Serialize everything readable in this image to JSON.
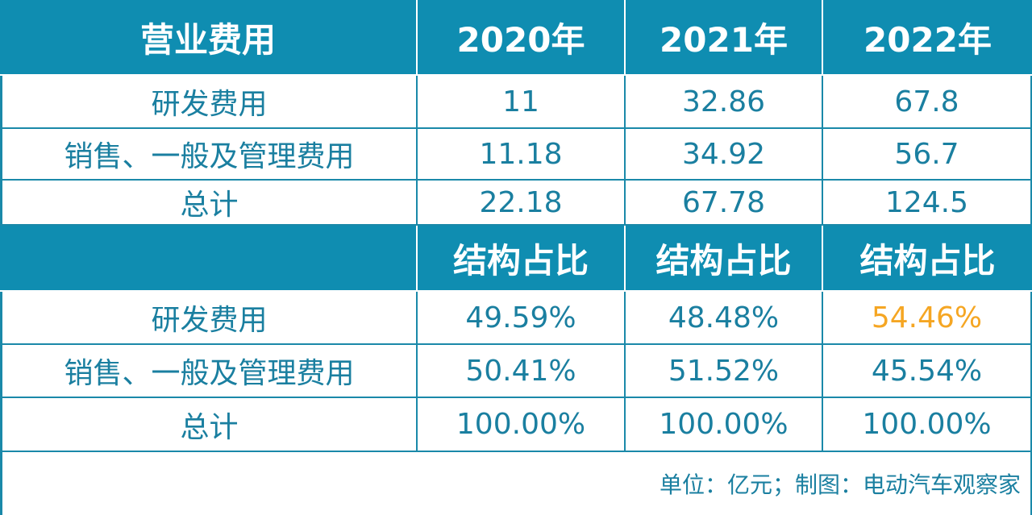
{
  "table1": {
    "header": [
      "营业费用",
      "2020年",
      "2021年",
      "2022年"
    ],
    "rows": [
      [
        "研发费用",
        "11",
        "32.86",
        "67.8"
      ],
      [
        "销售、一般及管理费用",
        "11.18",
        "34.92",
        "56.7"
      ],
      [
        "总计",
        "22.18",
        "67.78",
        "124.5"
      ]
    ]
  },
  "table2": {
    "header": [
      "",
      "结构占比",
      "结构占比",
      "结构占比"
    ],
    "rows": [
      [
        "研发费用",
        "49.59%",
        "48.48%",
        "54.46%"
      ],
      [
        "销售、一般及管理费用",
        "50.41%",
        "51.52%",
        "45.54%"
      ],
      [
        "总计",
        "100.00%",
        "100.00%",
        "100.00%"
      ]
    ],
    "highlight_color": "#f5a623"
  },
  "footer": "单位：亿元；制图：电动汽车观察家",
  "colors": {
    "header_bg": "#0f8db1",
    "text": "#1a7fa0",
    "border": "#1a89a9"
  }
}
